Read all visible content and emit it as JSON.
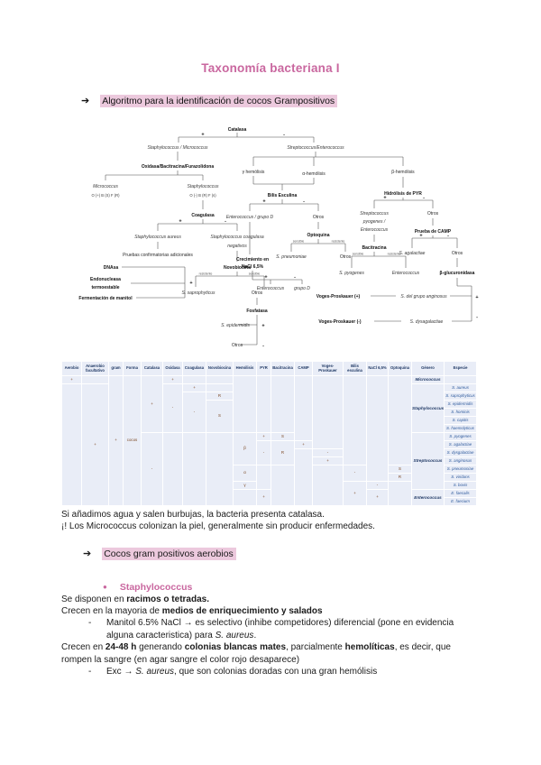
{
  "page": {
    "title": "Taxonomía bacteriana I"
  },
  "colors": {
    "accent_pink": "#c9679f",
    "highlight_pink": "#ecc9dd",
    "table_bg": "#e9edf7",
    "table_navy": "#1f3864"
  },
  "sections": {
    "algoritmo": {
      "arrow": "➔",
      "label": "Algoritmo para la identificación de cocos Grampositivos"
    },
    "cocos": {
      "arrow": "➔",
      "label": "Cocos gram positivos aerobios"
    },
    "staphylococcus": {
      "bullet": "●",
      "label": "Staphylococcus"
    }
  },
  "flowchart": {
    "plus": "+",
    "minus": "-",
    "sensible": "sensible",
    "resistente": "resistente",
    "catalasa": "Catalasa",
    "staph_micro": "Staphylococcus / Micrococcus",
    "oxidasa": "Oxidasa/Bacitracina/Furazolidona",
    "micrococcus": "Micrococcus",
    "micro_result": "O (+) B (S) F (R)",
    "staphylococcus": "Staphylococcus",
    "staph_result": "O (-) B (R) F (s)",
    "coagulasa": "Coagulasa",
    "s_aureus": "Staphylococcus aureus",
    "coag_neg_1": "Staphylococcus coagulasa",
    "coag_neg_2": "negativos",
    "pruebas": "Pruebas confirmatorias adicionales",
    "dnasa": "DNAsa",
    "endo_1": "Endonucleasa",
    "endo_2": "termoestable",
    "fermentacion": "Fermentación de manitol",
    "novobiocina": "Novobiocina",
    "s_saprophyticus": "S. saprophyticus",
    "otros": "Otros",
    "fosfatasa": "Fosfatasa",
    "s_epidermidis": "S. epidermidis",
    "strep_entero": "Streptococcus/Enterococcus",
    "gamma": "γ hemólisis",
    "alfa": "α-hemólisis",
    "beta": "β-hemólisis",
    "bilis": "Bilis Esculina",
    "entero_grupo": "Enterococcus / grupo D",
    "crecimiento_1": "Crecimiento en",
    "crecimiento_2": "NaCl 6,5%",
    "enterococcus": "Enterococcus",
    "grupo_d": "grupo D",
    "optoquina": "Optoquina",
    "s_pneumoniae": "S. pneumoniae",
    "pyr": "Hidrólisis de PYR",
    "strep_pyo_1": "Streptococcus",
    "strep_pyo_2": "pyogenes /",
    "strep_pyo_3": "Enterococcus",
    "bacitracina": "Bacitracina",
    "s_pyogenes": "S. pyogenes",
    "camp": "Prueba de CAMP",
    "s_agalactiae": "S. agalactiae",
    "glucuronidasa": "β-glucuronidasa",
    "vp_pos": "Voges-Proskauer (+)",
    "anginosus": "S. del grupo anginosus",
    "vp_neg": "Voges-Proskauer (-)",
    "dysgalactiae": "S. dysagalactiae"
  },
  "table": {
    "headers": [
      "Aerobio",
      "Anaerobio facultativo",
      "gram",
      "Forma",
      "Catalasa",
      "Oxidasa",
      "Coagulasa",
      "Novobiocina",
      "Hemólisis",
      "PYR",
      "Bacitracina",
      "CAMP",
      "Voges-Proskauer",
      "Bilis esculina",
      "NaCl 6,5%",
      "Optoquina",
      "Género",
      "Especie"
    ],
    "rows": [
      [
        {
          "t": "+"
        },
        {
          "t": ""
        },
        {
          "t": "+",
          "rs": 16
        },
        {
          "t": "cocos",
          "rs": 16
        },
        {
          "t": "+",
          "rs": 7
        },
        {
          "t": "+"
        },
        {
          "t": ""
        },
        {
          "t": ""
        },
        {
          "t": "",
          "rs": 7
        },
        {
          "t": "",
          "rs": 7
        },
        {
          "t": "",
          "rs": 7
        },
        {
          "t": "",
          "rs": 8
        },
        {
          "t": "",
          "rs": 9
        },
        {
          "t": "",
          "rs": 11
        },
        {
          "t": "",
          "rs": 13
        },
        {
          "t": "",
          "rs": 11
        },
        {
          "t": "Micrococcus",
          "k": "genus"
        },
        {
          "t": ""
        }
      ],
      [
        {
          "t": "",
          "rs": 15
        },
        {
          "t": "+",
          "rs": 15
        },
        {
          "t": "-",
          "rs": 6
        },
        {
          "t": "+"
        },
        {
          "t": ""
        },
        {
          "t": "Staphylococcus",
          "rs": 6,
          "k": "genus"
        },
        {
          "t": "S. aureus",
          "k": "sp"
        }
      ],
      [
        {
          "t": "-",
          "rs": 5
        },
        {
          "t": "R"
        },
        {
          "t": "S. saprophyticus",
          "k": "sp"
        }
      ],
      [
        {
          "t": "S",
          "rs": 4
        },
        {
          "t": "S. epidermidis",
          "k": "sp"
        }
      ],
      [
        {
          "t": "S. hominis",
          "k": "sp"
        }
      ],
      [
        {
          "t": "S. capitis",
          "k": "sp"
        }
      ],
      [
        {
          "t": "S. haemolyticus",
          "k": "sp"
        }
      ],
      [
        {
          "t": "-",
          "rs": 9
        },
        {
          "t": "",
          "rs": 9
        },
        {
          "t": "",
          "rs": 9
        },
        {
          "t": "",
          "rs": 9
        },
        {
          "t": "β",
          "rs": 4
        },
        {
          "t": "+"
        },
        {
          "t": "S"
        },
        {
          "t": "Streptococcus",
          "rs": 7,
          "k": "genus"
        },
        {
          "t": "S. pyogenes",
          "k": "sp"
        }
      ],
      [
        {
          "t": "-",
          "rs": 3
        },
        {
          "t": "R",
          "rs": 3
        },
        {
          "t": "+"
        },
        {
          "t": "S. agalactiae",
          "k": "sp"
        }
      ],
      [
        {
          "t": "",
          "rs": 7
        },
        {
          "t": "-"
        },
        {
          "t": "S. dysgalactiae",
          "k": "sp"
        }
      ],
      [
        {
          "t": "+"
        },
        {
          "t": "S. anginosus",
          "k": "sp"
        }
      ],
      [
        {
          "t": "α",
          "rs": 2
        },
        {
          "t": "",
          "rs": 3
        },
        {
          "t": "",
          "rs": 5
        },
        {
          "t": "",
          "rs": 5
        },
        {
          "t": "-",
          "rs": 2
        },
        {
          "t": "S"
        },
        {
          "t": "S. pneumoniae",
          "k": "sp"
        }
      ],
      [
        {
          "t": "R"
        },
        {
          "t": "S. viridans",
          "k": "sp"
        }
      ],
      [
        {
          "t": "γ"
        },
        {
          "t": "+",
          "rs": 3
        },
        {
          "t": "-"
        },
        {
          "t": "",
          "rs": 3
        },
        {
          "t": "S. bovis",
          "k": "sp"
        }
      ],
      [
        {
          "t": "",
          "rs": 2
        },
        {
          "t": "+",
          "rs": 2
        },
        {
          "t": "+",
          "rs": 2
        },
        {
          "t": "Enterococcus",
          "rs": 2,
          "k": "genus"
        },
        {
          "t": "E. faecalis",
          "k": "sp"
        }
      ],
      [
        {
          "t": "E. faecium",
          "k": "sp"
        }
      ]
    ]
  },
  "texts": {
    "dash": "-",
    "p1": [
      {
        "t": "Si añadimos agua y salen burbujas, la bacteria presenta catalasa."
      }
    ],
    "p2": [
      {
        "t": "¡! Los Micrococcus colonizan la piel, generalmente sin producir enfermedades."
      }
    ],
    "p3": [
      {
        "t": "Se disponen en "
      },
      {
        "t": "racimos o tetradas.",
        "b": 1
      }
    ],
    "p4": [
      {
        "t": "Crecen en la mayoria de "
      },
      {
        "t": "medios de enriquecimiento y salados",
        "b": 1
      }
    ],
    "p5": [
      {
        "t": "Manitol 6.5% NaCl → es selectivo (inhibe competidores) diferencial (pone en evidencia alguna caracteristica) para "
      },
      {
        "t": "S. aureus",
        "i": 1
      },
      {
        "t": "."
      }
    ],
    "p6": [
      {
        "t": "Crecen en "
      },
      {
        "t": "24-48 h",
        "b": 1
      },
      {
        "t": " generando "
      },
      {
        "t": "colonias blancas mates",
        "b": 1
      },
      {
        "t": ", parcialmente "
      },
      {
        "t": "hemolíticas",
        "b": 1
      },
      {
        "t": ", es decir, que rompen la sangre (en agar sangre el color rojo desaparece)"
      }
    ],
    "p7": [
      {
        "t": "Exc → "
      },
      {
        "t": "S. aureus",
        "i": 1
      },
      {
        "t": ", que son colonias doradas con una gran hemólisis"
      }
    ]
  }
}
